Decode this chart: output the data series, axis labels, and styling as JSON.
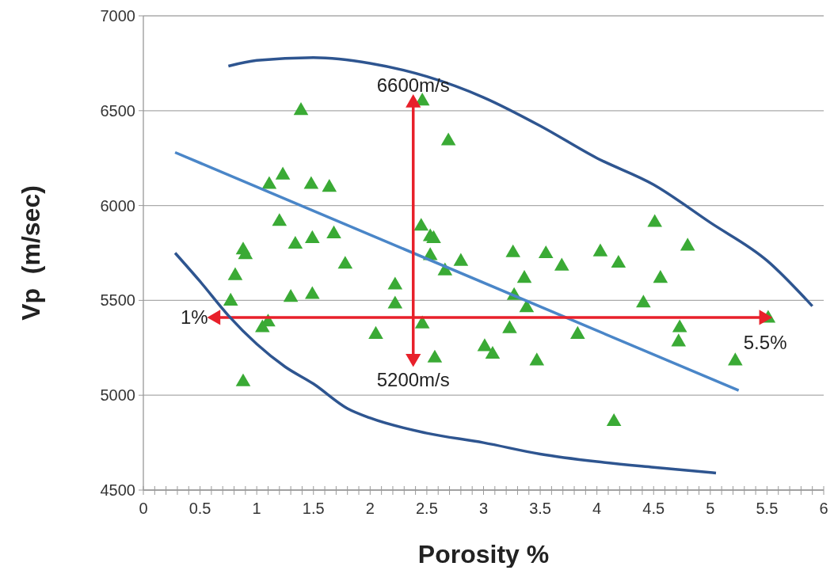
{
  "chart_data": {
    "type": "scatter",
    "xlabel": "Porosity %",
    "ylabel": "Vp  (m/sec)",
    "xlim": [
      0,
      6
    ],
    "ylim": [
      4500,
      7000
    ],
    "xticks": [
      0,
      {
        "value": 0.1,
        "label": null
      },
      {
        "value": 0.2,
        "label": null
      },
      {
        "value": 0.3,
        "label": null
      },
      {
        "value": 0.4,
        "label": null
      },
      {
        "value": 0.5,
        "label": "0.5"
      },
      {
        "value": 0.6,
        "label": null
      },
      {
        "value": 0.7,
        "label": null
      },
      {
        "value": 0.8,
        "label": null
      },
      {
        "value": 0.9,
        "label": null
      },
      1,
      {
        "value": 1.1,
        "label": null
      },
      {
        "value": 1.2,
        "label": null
      },
      {
        "value": 1.3,
        "label": null
      },
      {
        "value": 1.4,
        "label": null
      },
      {
        "value": 1.5,
        "label": "1.5"
      },
      {
        "value": 1.6,
        "label": null
      },
      {
        "value": 1.7,
        "label": null
      },
      {
        "value": 1.8,
        "label": null
      },
      {
        "value": 1.9,
        "label": null
      },
      2,
      {
        "value": 2.1,
        "label": null
      },
      {
        "value": 2.2,
        "label": null
      },
      {
        "value": 2.3,
        "label": null
      },
      {
        "value": 2.4,
        "label": null
      },
      {
        "value": 2.5,
        "label": "2.5"
      },
      {
        "value": 2.6,
        "label": null
      },
      {
        "value": 2.7,
        "label": null
      },
      {
        "value": 2.8,
        "label": null
      },
      {
        "value": 2.9,
        "label": null
      },
      3,
      {
        "value": 3.1,
        "label": null
      },
      {
        "value": 3.2,
        "label": null
      },
      {
        "value": 3.3,
        "label": null
      },
      {
        "value": 3.4,
        "label": null
      },
      {
        "value": 3.5,
        "label": "3.5"
      },
      {
        "value": 3.6,
        "label": null
      },
      {
        "value": 3.7,
        "label": null
      },
      {
        "value": 3.8,
        "label": null
      },
      {
        "value": 3.9,
        "label": null
      },
      4,
      {
        "value": 4.1,
        "label": null
      },
      {
        "value": 4.2,
        "label": null
      },
      {
        "value": 4.3,
        "label": null
      },
      {
        "value": 4.4,
        "label": null
      },
      {
        "value": 4.5,
        "label": "4.5"
      },
      {
        "value": 4.6,
        "label": null
      },
      {
        "value": 4.7,
        "label": null
      },
      {
        "value": 4.8,
        "label": null
      },
      {
        "value": 4.9,
        "label": null
      },
      5,
      {
        "value": 5.1,
        "label": null
      },
      {
        "value": 5.2,
        "label": null
      },
      {
        "value": 5.3,
        "label": null
      },
      {
        "value": 5.4,
        "label": null
      },
      {
        "value": 5.5,
        "label": "5.5"
      },
      {
        "value": 5.6,
        "label": null
      },
      {
        "value": 5.7,
        "label": null
      },
      {
        "value": 5.8,
        "label": null
      },
      {
        "value": 5.9,
        "label": null
      },
      6
    ],
    "yticks": [
      4500,
      5000,
      5500,
      6000,
      6500,
      7000
    ],
    "grid": "y",
    "series": [
      {
        "marker": "triangle",
        "color": "#3aaa35",
        "x": [
          1.39,
          2.46,
          2.69,
          1.23,
          1.11,
          1.48,
          1.64,
          1.2,
          1.34,
          1.49,
          1.68,
          0.88,
          0.9,
          1.78,
          0.81,
          0.77,
          1.3,
          1.49,
          2.22,
          2.22,
          1.1,
          1.05,
          2.46,
          2.05,
          2.57,
          0.88,
          2.45,
          2.53,
          2.56,
          2.53,
          2.66,
          2.8,
          3.26,
          3.55,
          3.69,
          4.03,
          4.19,
          3.36,
          3.27,
          3.38,
          3.23,
          3.83,
          3.01,
          3.08,
          3.47,
          4.41,
          4.51,
          4.8,
          4.56,
          5.51,
          4.73,
          4.72,
          5.22,
          4.15
        ],
        "values": [
          6500,
          6550,
          6340,
          6160,
          6110,
          6110,
          6095,
          5915,
          5795,
          5825,
          5850,
          5765,
          5740,
          5690,
          5630,
          5495,
          5515,
          5530,
          5580,
          5480,
          5385,
          5355,
          5375,
          5320,
          5195,
          5070,
          5890,
          5835,
          5825,
          5735,
          5655,
          5705,
          5750,
          5745,
          5680,
          5755,
          5695,
          5615,
          5525,
          5460,
          5350,
          5320,
          5255,
          5215,
          5180,
          5485,
          5910,
          5785,
          5615,
          5405,
          5355,
          5280,
          5180,
          4860
        ]
      },
      {
        "type": "line",
        "marker": "none",
        "line_style": "solid",
        "color": "#2e5590",
        "x": [
          0.75,
          1.0,
          1.5,
          2.0,
          2.5,
          3.0,
          3.5,
          4.0,
          4.5,
          5.0,
          5.5,
          5.9
        ],
        "values": [
          6735,
          6765,
          6780,
          6750,
          6680,
          6570,
          6420,
          6250,
          6110,
          5910,
          5710,
          5470
        ]
      },
      {
        "type": "line",
        "marker": "none",
        "line_style": "solid",
        "color": "#4a86c8",
        "x": [
          0.28,
          5.25
        ],
        "values": [
          6280,
          5025
        ]
      },
      {
        "type": "line",
        "marker": "triangle",
        "line_style": "solid",
        "color": "#e8202a",
        "x": [
          2.38,
          2.38
        ],
        "values": [
          6540,
          5195
        ]
      },
      {
        "type": "line",
        "marker": "triangle",
        "line_style": "solid",
        "color": "#e8202a",
        "x": [
          0.64,
          5.47
        ],
        "values": [
          5410,
          5410
        ]
      },
      {
        "type": "line",
        "marker": "none",
        "line_style": "solid",
        "color": "#2e5590",
        "x": [
          0.28,
          0.5,
          0.75,
          1.0,
          1.25,
          1.5,
          1.8,
          2.0,
          2.5,
          3.0,
          3.5,
          4.0,
          4.5,
          5.05
        ],
        "values": [
          5750,
          5600,
          5420,
          5270,
          5150,
          5060,
          4930,
          4880,
          4800,
          4750,
          4690,
          4650,
          4620,
          4590
        ]
      }
    ],
    "annotations": [
      {
        "text": "6600m/s",
        "x": 2.38,
        "y": 6540
      },
      {
        "text": "5200m/s",
        "x": 2.38,
        "y": 5195
      },
      {
        "text": "1%",
        "x": 0.64,
        "y": 5410
      },
      {
        "text": "5.5%",
        "x": 5.47,
        "y": 5410
      }
    ]
  }
}
